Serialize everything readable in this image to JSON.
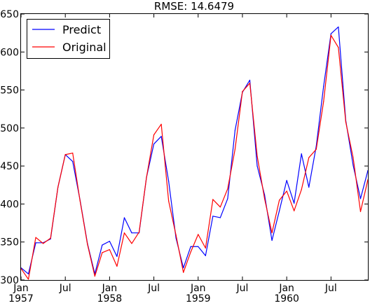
{
  "chart_data": {
    "type": "line",
    "title": "RMSE: 14.6479",
    "xlabel": "",
    "ylabel": "",
    "ylim": [
      300,
      650
    ],
    "yticks": [
      300,
      350,
      400,
      450,
      500,
      550,
      600,
      650
    ],
    "xlim": [
      "1957-01",
      "1960-12"
    ],
    "xtick_labels": [
      {
        "x": "1957-01",
        "line1": "Jan",
        "line2": "1957"
      },
      {
        "x": "1957-07",
        "line1": "Jul",
        "line2": ""
      },
      {
        "x": "1958-01",
        "line1": "Jan",
        "line2": "1958"
      },
      {
        "x": "1958-07",
        "line1": "Jul",
        "line2": ""
      },
      {
        "x": "1959-01",
        "line1": "Jan",
        "line2": "1959"
      },
      {
        "x": "1959-07",
        "line1": "Jul",
        "line2": ""
      },
      {
        "x": "1960-01",
        "line1": "Jan",
        "line2": "1960"
      },
      {
        "x": "1960-07",
        "line1": "Jul",
        "line2": ""
      }
    ],
    "x": [
      "1957-01",
      "1957-02",
      "1957-03",
      "1957-04",
      "1957-05",
      "1957-06",
      "1957-07",
      "1957-08",
      "1957-09",
      "1957-10",
      "1957-11",
      "1957-12",
      "1958-01",
      "1958-02",
      "1958-03",
      "1958-04",
      "1958-05",
      "1958-06",
      "1958-07",
      "1958-08",
      "1958-09",
      "1958-10",
      "1958-11",
      "1958-12",
      "1959-01",
      "1959-02",
      "1959-03",
      "1959-04",
      "1959-05",
      "1959-06",
      "1959-07",
      "1959-08",
      "1959-09",
      "1959-10",
      "1959-11",
      "1959-12",
      "1960-01",
      "1960-02",
      "1960-03",
      "1960-04",
      "1960-05",
      "1960-06",
      "1960-07",
      "1960-08",
      "1960-09",
      "1960-10",
      "1960-11",
      "1960-12"
    ],
    "series": [
      {
        "name": "Predict",
        "color": "#0000ff",
        "values": [
          316,
          308,
          349,
          349,
          354,
          422,
          465,
          456,
          405,
          348,
          308,
          346,
          351,
          331,
          382,
          362,
          362,
          435,
          479,
          489,
          430,
          355,
          316,
          344,
          344,
          332,
          384,
          382,
          407,
          497,
          547,
          563,
          450,
          412,
          352,
          391,
          431,
          401,
          466,
          422,
          476,
          555,
          624,
          633,
          510,
          451,
          407,
          444
        ]
      },
      {
        "name": "Original",
        "color": "#ff0000",
        "values": [
          315,
          301,
          356,
          348,
          355,
          422,
          465,
          467,
          404,
          347,
          305,
          336,
          340,
          318,
          362,
          348,
          363,
          435,
          491,
          505,
          404,
          359,
          310,
          337,
          360,
          342,
          406,
          396,
          420,
          472,
          548,
          559,
          463,
          407,
          362,
          405,
          417,
          391,
          419,
          461,
          472,
          535,
          622,
          606,
          508,
          461,
          390,
          432
        ]
      }
    ],
    "grid": false,
    "legend_position": "top-left"
  }
}
